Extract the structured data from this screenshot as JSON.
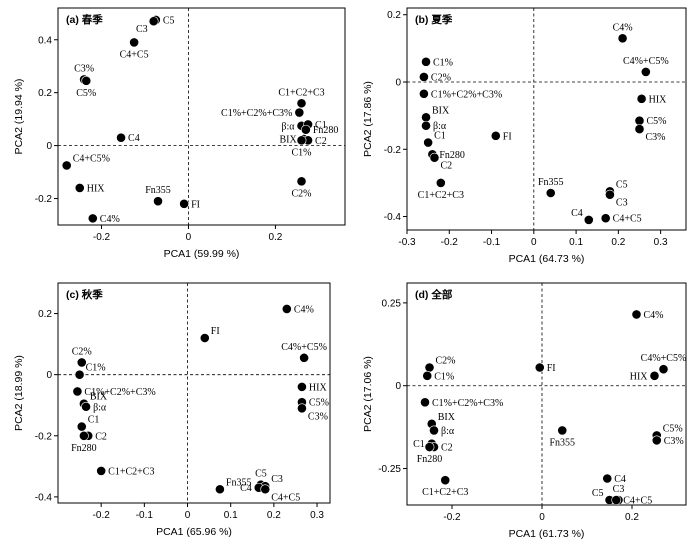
{
  "chart_data": [
    {
      "type": "scatter",
      "title": "(a) 春季",
      "xlabel": "PCA1 (59.99 %)",
      "ylabel": "PCA2 (19.94 %)",
      "xlim": [
        -0.3,
        0.36
      ],
      "ylim": [
        -0.3,
        0.52
      ],
      "xticks": [
        -0.2,
        0,
        0.2
      ],
      "xtick_labels": [
        "-0.2",
        "0",
        "0.2"
      ],
      "yticks": [
        -0.2,
        0,
        0.2,
        0.4
      ],
      "ytick_labels": [
        "-0.2",
        "0",
        "0.2",
        "0.4"
      ],
      "points": [
        {
          "label": "C5",
          "x": -0.075,
          "y": 0.475,
          "label_pos": "e"
        },
        {
          "label": "C3",
          "x": -0.08,
          "y": 0.47,
          "label_pos": "sw"
        },
        {
          "label": "C4+C5",
          "x": -0.125,
          "y": 0.39,
          "label_pos": "s"
        },
        {
          "label": "C3%",
          "x": -0.24,
          "y": 0.25,
          "label_pos": "n"
        },
        {
          "label": "C5%",
          "x": -0.235,
          "y": 0.245,
          "label_pos": "s"
        },
        {
          "label": "C4",
          "x": -0.155,
          "y": 0.03,
          "label_pos": "e"
        },
        {
          "label": "C4+C5%",
          "x": -0.28,
          "y": -0.075,
          "label_pos": "ne"
        },
        {
          "label": "HIX",
          "x": -0.25,
          "y": -0.16,
          "label_pos": "e"
        },
        {
          "label": "C4%",
          "x": -0.22,
          "y": -0.275,
          "label_pos": "e"
        },
        {
          "label": "Fn355",
          "x": -0.07,
          "y": -0.21,
          "label_pos": "n"
        },
        {
          "label": "FI",
          "x": -0.01,
          "y": -0.22,
          "label_pos": "e"
        },
        {
          "label": "C1+C2+C3",
          "x": 0.26,
          "y": 0.16,
          "label_pos": "n"
        },
        {
          "label": "C1%+C2%+C3%",
          "x": 0.255,
          "y": 0.125,
          "label_pos": "w"
        },
        {
          "label": "β:α",
          "x": 0.26,
          "y": 0.075,
          "label_pos": "w"
        },
        {
          "label": "C1",
          "x": 0.275,
          "y": 0.08,
          "label_pos": "e"
        },
        {
          "label": "Fn280",
          "x": 0.27,
          "y": 0.06,
          "label_pos": "e"
        },
        {
          "label": "BIX",
          "x": 0.265,
          "y": 0.025,
          "label_pos": "w"
        },
        {
          "label": "C2",
          "x": 0.275,
          "y": 0.02,
          "label_pos": "e"
        },
        {
          "label": "C1%",
          "x": 0.26,
          "y": 0.02,
          "label_pos": "s"
        },
        {
          "label": "C2%",
          "x": 0.26,
          "y": -0.135,
          "label_pos": "s"
        }
      ]
    },
    {
      "type": "scatter",
      "title": "(b) 夏季",
      "xlabel": "PCA1 (64.73 %)",
      "ylabel": "PCA2 (17.86 %)",
      "xlim": [
        -0.3,
        0.36
      ],
      "ylim": [
        -0.44,
        0.22
      ],
      "xticks": [
        -0.3,
        -0.2,
        -0.1,
        0,
        0.1,
        0.2,
        0.3
      ],
      "xtick_labels": [
        "-0.3",
        "-0.2",
        "-0.1",
        "0",
        "0.1",
        "0.2",
        "0.3"
      ],
      "yticks": [
        -0.4,
        -0.2,
        0,
        0.2
      ],
      "ytick_labels": [
        "-0.4",
        "-0.2",
        "0",
        "0.2"
      ],
      "points": [
        {
          "label": "C1%",
          "x": -0.255,
          "y": 0.06,
          "label_pos": "e"
        },
        {
          "label": "C2%",
          "x": -0.26,
          "y": 0.015,
          "label_pos": "e"
        },
        {
          "label": "C1%+C2%+C3%",
          "x": -0.26,
          "y": -0.035,
          "label_pos": "e"
        },
        {
          "label": "BIX",
          "x": -0.255,
          "y": -0.105,
          "label_pos": "ne"
        },
        {
          "label": "β:α",
          "x": -0.255,
          "y": -0.13,
          "label_pos": "e"
        },
        {
          "label": "C1",
          "x": -0.25,
          "y": -0.18,
          "label_pos": "ne"
        },
        {
          "label": "Fn280",
          "x": -0.24,
          "y": -0.215,
          "label_pos": "e"
        },
        {
          "label": "C2",
          "x": -0.235,
          "y": -0.225,
          "label_pos": "se"
        },
        {
          "label": "C1+C2+C3",
          "x": -0.22,
          "y": -0.3,
          "label_pos": "s"
        },
        {
          "label": "FI",
          "x": -0.09,
          "y": -0.16,
          "label_pos": "e"
        },
        {
          "label": "Fn355",
          "x": 0.04,
          "y": -0.33,
          "label_pos": "n"
        },
        {
          "label": "C4",
          "x": 0.13,
          "y": -0.41,
          "label_pos": "nw"
        },
        {
          "label": "C5",
          "x": 0.18,
          "y": -0.325,
          "label_pos": "ne"
        },
        {
          "label": "C3",
          "x": 0.18,
          "y": -0.335,
          "label_pos": "se"
        },
        {
          "label": "C4+C5",
          "x": 0.17,
          "y": -0.405,
          "label_pos": "e"
        },
        {
          "label": "C4%",
          "x": 0.21,
          "y": 0.13,
          "label_pos": "n"
        },
        {
          "label": "C4%+C5%",
          "x": 0.265,
          "y": 0.03,
          "label_pos": "n"
        },
        {
          "label": "HIX",
          "x": 0.255,
          "y": -0.05,
          "label_pos": "e"
        },
        {
          "label": "C5%",
          "x": 0.25,
          "y": -0.115,
          "label_pos": "e"
        },
        {
          "label": "C3%",
          "x": 0.25,
          "y": -0.14,
          "label_pos": "se"
        }
      ]
    },
    {
      "type": "scatter",
      "title": "(c) 秋季",
      "xlabel": "PCA1 (65.96 %)",
      "ylabel": "PCA2 (18.99 %)",
      "xlim": [
        -0.3,
        0.33
      ],
      "ylim": [
        -0.42,
        0.3
      ],
      "xticks": [
        -0.2,
        -0.1,
        0,
        0.1,
        0.2,
        0.3
      ],
      "xtick_labels": [
        "-0.2",
        "-0.1",
        "0",
        "0.1",
        "0.2",
        "0.3"
      ],
      "yticks": [
        -0.4,
        -0.2,
        0,
        0.2
      ],
      "ytick_labels": [
        "-0.4",
        "-0.2",
        "0",
        "0.2"
      ],
      "points": [
        {
          "label": "C2%",
          "x": -0.245,
          "y": 0.04,
          "label_pos": "n"
        },
        {
          "label": "C1%",
          "x": -0.25,
          "y": 0.0,
          "label_pos": "ne"
        },
        {
          "label": "C1%+C2%+C3%",
          "x": -0.255,
          "y": -0.055,
          "label_pos": "e"
        },
        {
          "label": "BIX",
          "x": -0.24,
          "y": -0.095,
          "label_pos": "ne"
        },
        {
          "label": "β:α",
          "x": -0.235,
          "y": -0.105,
          "label_pos": "e"
        },
        {
          "label": "C1",
          "x": -0.245,
          "y": -0.17,
          "label_pos": "ne"
        },
        {
          "label": "C2",
          "x": -0.23,
          "y": -0.2,
          "label_pos": "e"
        },
        {
          "label": "Fn280",
          "x": -0.24,
          "y": -0.2,
          "label_pos": "s"
        },
        {
          "label": "C1+C2+C3",
          "x": -0.2,
          "y": -0.315,
          "label_pos": "e"
        },
        {
          "label": "FI",
          "x": 0.04,
          "y": 0.12,
          "label_pos": "ne"
        },
        {
          "label": "Fn355",
          "x": 0.075,
          "y": -0.375,
          "label_pos": "ne"
        },
        {
          "label": "C5",
          "x": 0.17,
          "y": -0.36,
          "label_pos": "n"
        },
        {
          "label": "C3",
          "x": 0.18,
          "y": -0.365,
          "label_pos": "ne"
        },
        {
          "label": "C4",
          "x": 0.165,
          "y": -0.37,
          "label_pos": "w"
        },
        {
          "label": "C4+C5",
          "x": 0.18,
          "y": -0.375,
          "label_pos": "se"
        },
        {
          "label": "C4%",
          "x": 0.23,
          "y": 0.215,
          "label_pos": "e"
        },
        {
          "label": "C4%+C5%",
          "x": 0.27,
          "y": 0.055,
          "label_pos": "n"
        },
        {
          "label": "HIX",
          "x": 0.265,
          "y": -0.04,
          "label_pos": "e"
        },
        {
          "label": "C5%",
          "x": 0.265,
          "y": -0.09,
          "label_pos": "e"
        },
        {
          "label": "C3%",
          "x": 0.265,
          "y": -0.11,
          "label_pos": "se"
        }
      ]
    },
    {
      "type": "scatter",
      "title": "(d) 全部",
      "xlabel": "PCA1 (61.73 %)",
      "ylabel": "PCA2 (17.06 %)",
      "xlim": [
        -0.3,
        0.32
      ],
      "ylim": [
        -0.36,
        0.31
      ],
      "xticks": [
        -0.2,
        0,
        0.2
      ],
      "xtick_labels": [
        "-0.2",
        "0",
        "0.2"
      ],
      "yticks": [
        -0.25,
        0,
        0.25
      ],
      "ytick_labels": [
        "-0.25",
        "0",
        "0.25"
      ],
      "points": [
        {
          "label": "C2%",
          "x": -0.25,
          "y": 0.055,
          "label_pos": "ne"
        },
        {
          "label": "C1%",
          "x": -0.255,
          "y": 0.03,
          "label_pos": "e"
        },
        {
          "label": "C1%+C2%+C3%",
          "x": -0.26,
          "y": -0.05,
          "label_pos": "e"
        },
        {
          "label": "BIX",
          "x": -0.245,
          "y": -0.115,
          "label_pos": "ne"
        },
        {
          "label": "β:α",
          "x": -0.24,
          "y": -0.135,
          "label_pos": "e"
        },
        {
          "label": "C1",
          "x": -0.245,
          "y": -0.175,
          "label_pos": "w"
        },
        {
          "label": "C2",
          "x": -0.24,
          "y": -0.185,
          "label_pos": "e"
        },
        {
          "label": "Fn280",
          "x": -0.25,
          "y": -0.185,
          "label_pos": "s"
        },
        {
          "label": "C1+C2+C3",
          "x": -0.215,
          "y": -0.285,
          "label_pos": "s"
        },
        {
          "label": "FI",
          "x": -0.005,
          "y": 0.055,
          "label_pos": "e"
        },
        {
          "label": "Fn355",
          "x": 0.045,
          "y": -0.135,
          "label_pos": "s"
        },
        {
          "label": "C4",
          "x": 0.145,
          "y": -0.28,
          "label_pos": "e"
        },
        {
          "label": "C5",
          "x": 0.15,
          "y": -0.345,
          "label_pos": "nw"
        },
        {
          "label": "C3",
          "x": 0.17,
          "y": -0.345,
          "label_pos": "n"
        },
        {
          "label": "C4+C5",
          "x": 0.165,
          "y": -0.345,
          "label_pos": "e"
        },
        {
          "label": "C4%",
          "x": 0.21,
          "y": 0.215,
          "label_pos": "e"
        },
        {
          "label": "C4%+C5%",
          "x": 0.27,
          "y": 0.05,
          "label_pos": "n"
        },
        {
          "label": "HIX",
          "x": 0.25,
          "y": 0.03,
          "label_pos": "w"
        },
        {
          "label": "C5%",
          "x": 0.255,
          "y": -0.15,
          "label_pos": "ne"
        },
        {
          "label": "C3%",
          "x": 0.255,
          "y": -0.165,
          "label_pos": "e"
        }
      ]
    }
  ]
}
